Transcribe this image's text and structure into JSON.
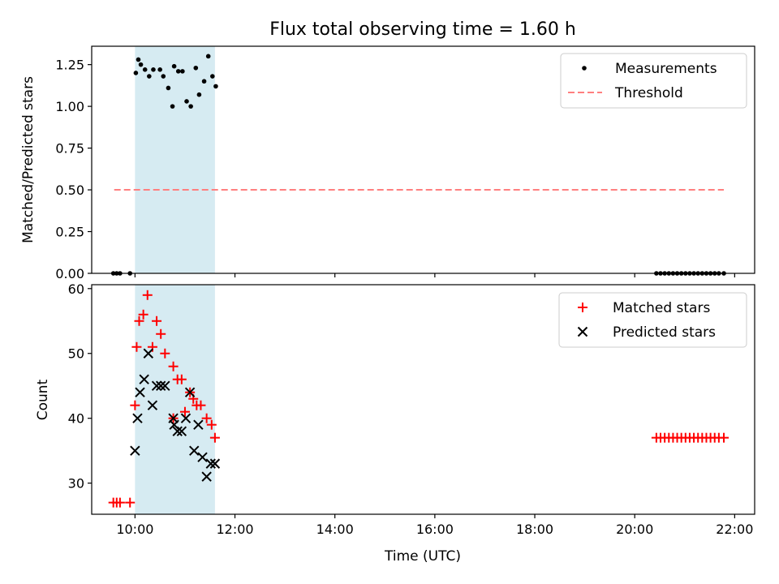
{
  "chart_data": [
    {
      "type": "scatter",
      "title": "Flux total observing time = 1.60 h",
      "xlabel": "",
      "ylabel": "Matched/Predicted stars",
      "xlim": [
        "09:08",
        "22:24"
      ],
      "ylim": [
        0,
        1.36
      ],
      "y_ticks": [
        0.0,
        0.25,
        0.5,
        0.75,
        1.0,
        1.25
      ],
      "y_tick_labels": [
        "0.00",
        "0.25",
        "0.50",
        "0.75",
        "1.00",
        "1.25"
      ],
      "x_ticks": [
        "10:00",
        "12:00",
        "14:00",
        "16:00",
        "18:00",
        "20:00",
        "22:00"
      ],
      "x_tick_labels_shown": false,
      "legend_position": "top-right",
      "shaded_span": {
        "x_start": "10:00",
        "x_end": "11:36",
        "color": "#add8e6"
      },
      "series": [
        {
          "name": "Measurements",
          "marker": "dot",
          "color": "#000000",
          "points": [
            {
              "x": "09:34",
              "y": 0.0
            },
            {
              "x": "09:38",
              "y": 0.0
            },
            {
              "x": "09:42",
              "y": 0.0
            },
            {
              "x": "09:54",
              "y": 0.0
            },
            {
              "x": "10:01",
              "y": 1.2
            },
            {
              "x": "10:04",
              "y": 1.28
            },
            {
              "x": "10:07",
              "y": 1.25
            },
            {
              "x": "10:12",
              "y": 1.22
            },
            {
              "x": "10:17",
              "y": 1.18
            },
            {
              "x": "10:22",
              "y": 1.22
            },
            {
              "x": "10:30",
              "y": 1.22
            },
            {
              "x": "10:34",
              "y": 1.18
            },
            {
              "x": "10:40",
              "y": 1.11
            },
            {
              "x": "10:45",
              "y": 1.0
            },
            {
              "x": "10:47",
              "y": 1.24
            },
            {
              "x": "10:52",
              "y": 1.21
            },
            {
              "x": "10:57",
              "y": 1.21
            },
            {
              "x": "11:02",
              "y": 1.03
            },
            {
              "x": "11:07",
              "y": 1.0
            },
            {
              "x": "11:13",
              "y": 1.23
            },
            {
              "x": "11:17",
              "y": 1.07
            },
            {
              "x": "11:23",
              "y": 1.15
            },
            {
              "x": "11:28",
              "y": 1.3
            },
            {
              "x": "11:33",
              "y": 1.18
            },
            {
              "x": "11:37",
              "y": 1.12
            },
            {
              "x": "20:26",
              "y": 0.0
            },
            {
              "x": "20:31",
              "y": 0.0
            },
            {
              "x": "20:36",
              "y": 0.0
            },
            {
              "x": "20:41",
              "y": 0.0
            },
            {
              "x": "20:46",
              "y": 0.0
            },
            {
              "x": "20:51",
              "y": 0.0
            },
            {
              "x": "20:56",
              "y": 0.0
            },
            {
              "x": "21:01",
              "y": 0.0
            },
            {
              "x": "21:06",
              "y": 0.0
            },
            {
              "x": "21:11",
              "y": 0.0
            },
            {
              "x": "21:16",
              "y": 0.0
            },
            {
              "x": "21:21",
              "y": 0.0
            },
            {
              "x": "21:26",
              "y": 0.0
            },
            {
              "x": "21:31",
              "y": 0.0
            },
            {
              "x": "21:36",
              "y": 0.0
            },
            {
              "x": "21:41",
              "y": 0.0
            },
            {
              "x": "21:47",
              "y": 0.0
            }
          ]
        },
        {
          "name": "Threshold",
          "marker": "dashed-line",
          "color": "#ff7f7f",
          "points": [
            {
              "x": "09:35",
              "y": 0.5
            },
            {
              "x": "21:47",
              "y": 0.5
            }
          ]
        }
      ]
    },
    {
      "type": "scatter",
      "title": "",
      "xlabel": "Time (UTC)",
      "ylabel": "Count",
      "xlim": [
        "09:08",
        "22:24"
      ],
      "ylim": [
        25.2,
        60.6
      ],
      "y_ticks": [
        30,
        40,
        50,
        60
      ],
      "y_tick_labels": [
        "30",
        "40",
        "50",
        "60"
      ],
      "x_ticks": [
        "10:00",
        "12:00",
        "14:00",
        "16:00",
        "18:00",
        "20:00",
        "22:00"
      ],
      "x_tick_labels": [
        "10:00",
        "12:00",
        "14:00",
        "16:00",
        "18:00",
        "20:00",
        "22:00"
      ],
      "legend_position": "top-right",
      "shaded_span": {
        "x_start": "10:00",
        "x_end": "11:36",
        "color": "#add8e6"
      },
      "series": [
        {
          "name": "Matched stars",
          "marker": "plus",
          "color": "#ff0000",
          "points": [
            {
              "x": "09:34",
              "y": 27
            },
            {
              "x": "09:38",
              "y": 27
            },
            {
              "x": "09:42",
              "y": 27
            },
            {
              "x": "09:54",
              "y": 27
            },
            {
              "x": "10:00",
              "y": 42
            },
            {
              "x": "10:02",
              "y": 51
            },
            {
              "x": "10:05",
              "y": 55
            },
            {
              "x": "10:10",
              "y": 56
            },
            {
              "x": "10:15",
              "y": 59
            },
            {
              "x": "10:21",
              "y": 51
            },
            {
              "x": "10:26",
              "y": 55
            },
            {
              "x": "10:31",
              "y": 53
            },
            {
              "x": "10:36",
              "y": 50
            },
            {
              "x": "10:46",
              "y": 48
            },
            {
              "x": "10:51",
              "y": 46
            },
            {
              "x": "10:56",
              "y": 46
            },
            {
              "x": "10:46",
              "y": 40
            },
            {
              "x": "11:00",
              "y": 41
            },
            {
              "x": "11:06",
              "y": 44
            },
            {
              "x": "11:10",
              "y": 43
            },
            {
              "x": "11:14",
              "y": 42
            },
            {
              "x": "11:19",
              "y": 42
            },
            {
              "x": "11:26",
              "y": 40
            },
            {
              "x": "11:32",
              "y": 39
            },
            {
              "x": "11:36",
              "y": 37
            },
            {
              "x": "20:26",
              "y": 37
            },
            {
              "x": "20:31",
              "y": 37
            },
            {
              "x": "20:36",
              "y": 37
            },
            {
              "x": "20:41",
              "y": 37
            },
            {
              "x": "20:46",
              "y": 37
            },
            {
              "x": "20:51",
              "y": 37
            },
            {
              "x": "20:56",
              "y": 37
            },
            {
              "x": "21:01",
              "y": 37
            },
            {
              "x": "21:06",
              "y": 37
            },
            {
              "x": "21:11",
              "y": 37
            },
            {
              "x": "21:16",
              "y": 37
            },
            {
              "x": "21:21",
              "y": 37
            },
            {
              "x": "21:26",
              "y": 37
            },
            {
              "x": "21:31",
              "y": 37
            },
            {
              "x": "21:36",
              "y": 37
            },
            {
              "x": "21:41",
              "y": 37
            },
            {
              "x": "21:47",
              "y": 37
            }
          ]
        },
        {
          "name": "Predicted stars",
          "marker": "x",
          "color": "#000000",
          "points": [
            {
              "x": "10:00",
              "y": 35
            },
            {
              "x": "10:03",
              "y": 40
            },
            {
              "x": "10:06",
              "y": 44
            },
            {
              "x": "10:11",
              "y": 46
            },
            {
              "x": "10:16",
              "y": 50
            },
            {
              "x": "10:21",
              "y": 42
            },
            {
              "x": "10:26",
              "y": 45
            },
            {
              "x": "10:31",
              "y": 45
            },
            {
              "x": "10:36",
              "y": 45
            },
            {
              "x": "10:46",
              "y": 40
            },
            {
              "x": "10:47",
              "y": 39
            },
            {
              "x": "10:51",
              "y": 38
            },
            {
              "x": "10:56",
              "y": 38
            },
            {
              "x": "11:01",
              "y": 40
            },
            {
              "x": "11:06",
              "y": 44
            },
            {
              "x": "11:11",
              "y": 35
            },
            {
              "x": "11:16",
              "y": 39
            },
            {
              "x": "11:21",
              "y": 34
            },
            {
              "x": "11:26",
              "y": 31
            },
            {
              "x": "11:31",
              "y": 33
            },
            {
              "x": "11:36",
              "y": 33
            }
          ]
        }
      ]
    }
  ]
}
